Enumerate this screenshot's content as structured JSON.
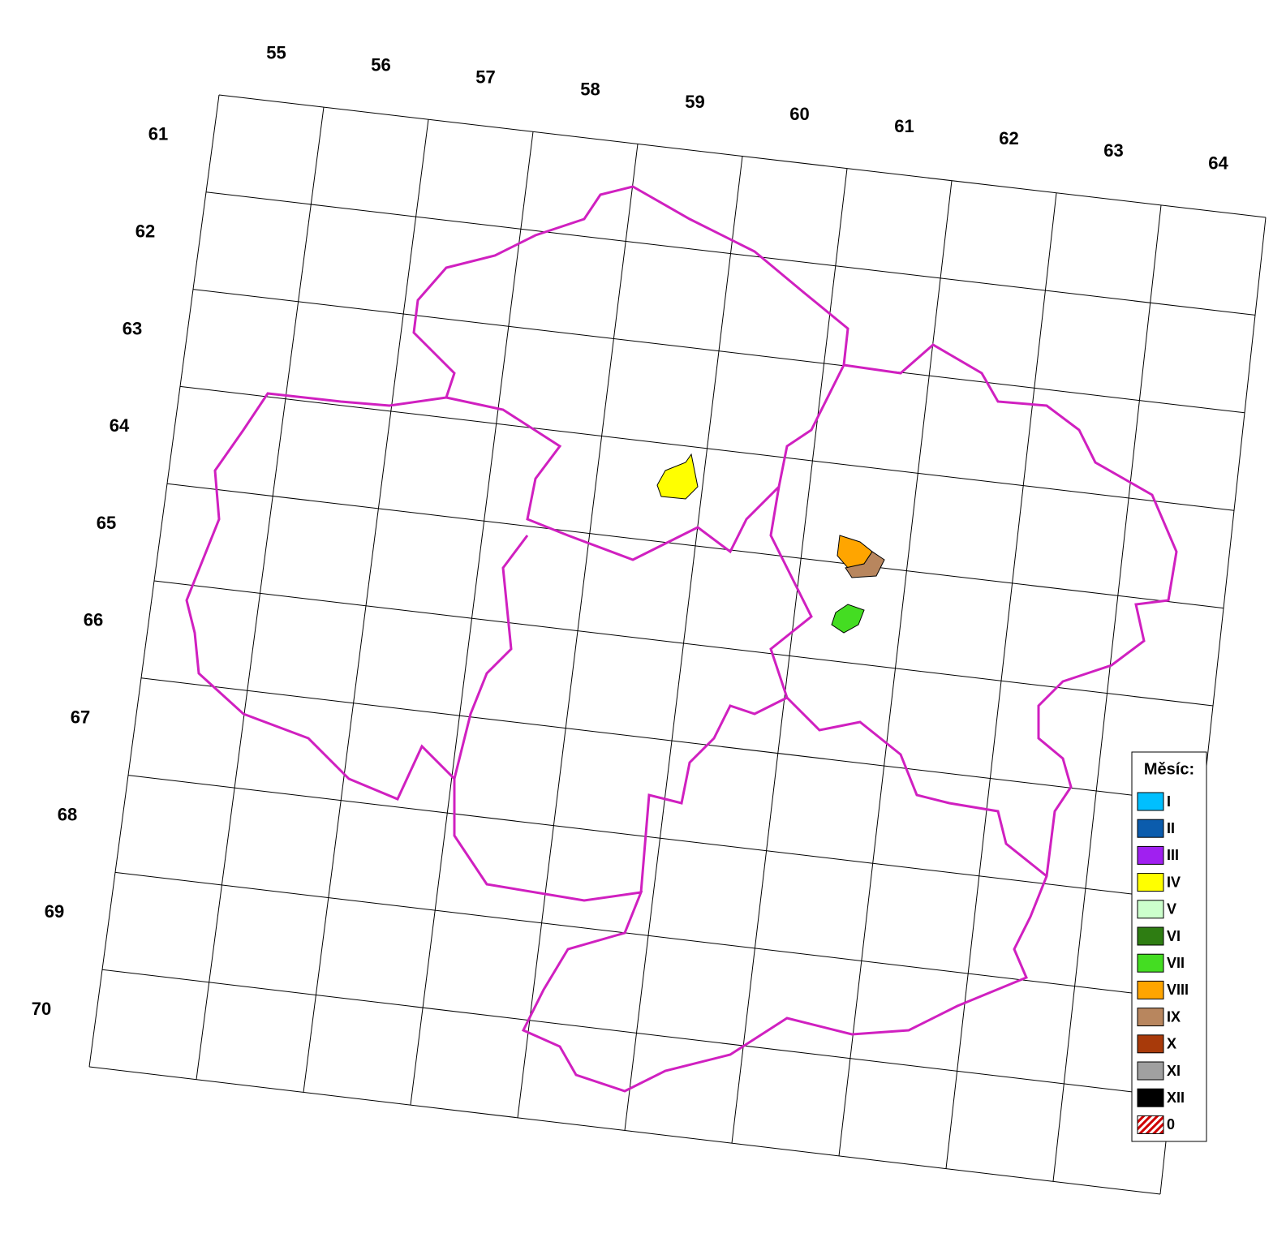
{
  "grid": {
    "columns": [
      55,
      56,
      57,
      58,
      59,
      60,
      61,
      62,
      63,
      64
    ],
    "rows": [
      61,
      62,
      63,
      64,
      65,
      66,
      67,
      68,
      69,
      70
    ]
  },
  "legend": {
    "title": "Měsíc:",
    "items": [
      {
        "label": "I",
        "color": "#00bfff"
      },
      {
        "label": "II",
        "color": "#0b5cad"
      },
      {
        "label": "III",
        "color": "#a020f0"
      },
      {
        "label": "IV",
        "color": "#ffff00"
      },
      {
        "label": "V",
        "color": "#ccffcc"
      },
      {
        "label": "VI",
        "color": "#2e7d12"
      },
      {
        "label": "VII",
        "color": "#44dd22"
      },
      {
        "label": "VIII",
        "color": "#ffa500"
      },
      {
        "label": "IX",
        "color": "#b8865e"
      },
      {
        "label": "X",
        "color": "#a83a0a"
      },
      {
        "label": "XI",
        "color": "#a0a0a0"
      },
      {
        "label": "XII",
        "color": "#000000"
      },
      {
        "label": "0",
        "color": "#d00000",
        "pattern": "hatch"
      }
    ]
  }
}
